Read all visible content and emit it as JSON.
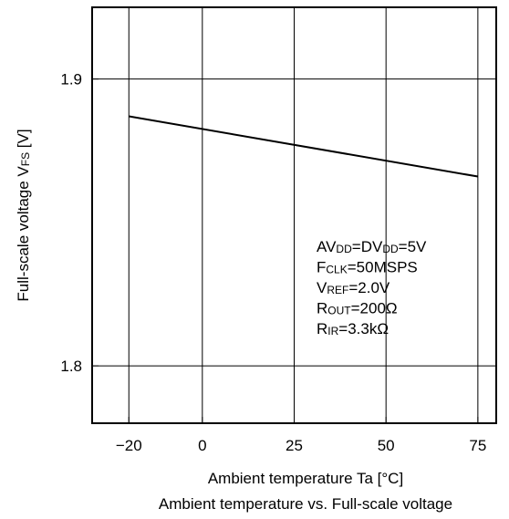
{
  "chart_data": {
    "type": "line",
    "x": [
      -20,
      75
    ],
    "series": [
      {
        "values": [
          1.887,
          1.866
        ]
      }
    ],
    "xlim": [
      -30,
      80
    ],
    "ylim": [
      1.78,
      1.925
    ],
    "xticks": [
      -20,
      0,
      25,
      50,
      75
    ],
    "yticks": [
      1.8,
      1.9
    ],
    "xtick_labels": [
      "−20",
      "0",
      "25",
      "50",
      "75"
    ],
    "ytick_labels": [
      "1.8",
      "1.9"
    ],
    "xlabel": "Ambient temperature Ta [°C]",
    "ylabel": {
      "main": "Full-scale voltage V",
      "sub": "FS",
      "unit": " [V]"
    },
    "title": "Ambient temperature vs. Full-scale voltage",
    "grid": true,
    "line_color": "#000000",
    "annotation": [
      {
        "parts": [
          [
            "AV",
            ""
          ],
          [
            "DD",
            "sub"
          ],
          [
            "=DV",
            ""
          ],
          [
            "DD",
            "sub"
          ],
          [
            "=5V",
            ""
          ]
        ]
      },
      {
        "parts": [
          [
            "F",
            ""
          ],
          [
            "CLK",
            "sub"
          ],
          [
            "=50MSPS",
            ""
          ]
        ]
      },
      {
        "parts": [
          [
            "V",
            ""
          ],
          [
            "REF",
            "sub"
          ],
          [
            "=2.0V",
            ""
          ]
        ]
      },
      {
        "parts": [
          [
            "R",
            ""
          ],
          [
            "OUT",
            "sub"
          ],
          [
            "=200Ω",
            ""
          ]
        ]
      },
      {
        "parts": [
          [
            "R",
            ""
          ],
          [
            "IR",
            "sub"
          ],
          [
            "=3.3kΩ",
            ""
          ]
        ]
      }
    ]
  }
}
